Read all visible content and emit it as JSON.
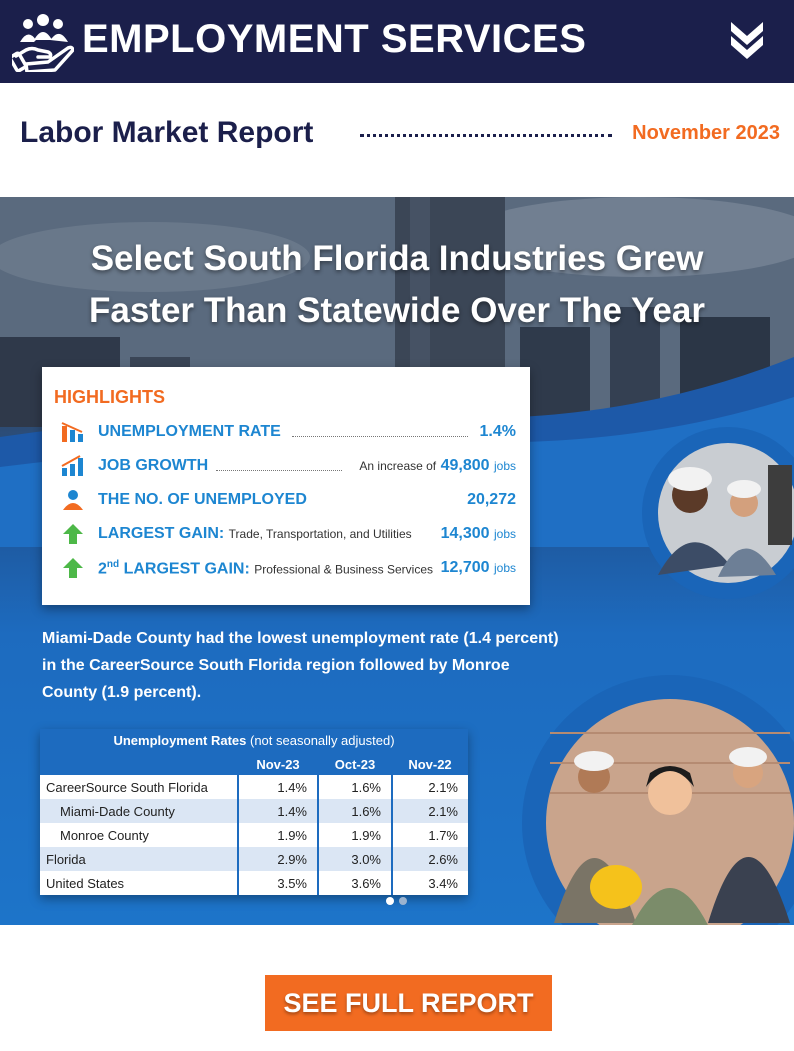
{
  "header": {
    "title": "EMPLOYMENT SERVICES",
    "brand_icon": "people-in-hand-icon",
    "toggle_icon": "double-chevron-down-icon",
    "bg_color": "#1b1f4b"
  },
  "report": {
    "title": "Labor Market Report",
    "date": "November 2023",
    "accent_color": "#f26b21"
  },
  "infographic": {
    "headline_line1": "Select South Florida Industries Grew",
    "headline_line2": "Faster Than Statewide Over The Year",
    "highlights": {
      "heading": "HIGHLIGHTS",
      "items": [
        {
          "icon": "bar-chart-down-icon",
          "label": "UNEMPLOYMENT RATE",
          "detail": "",
          "prefix": "",
          "value": "1.4%",
          "suffix": ""
        },
        {
          "icon": "bar-chart-up-icon",
          "label": "JOB GROWTH",
          "detail": "",
          "prefix": "An increase of",
          "value": "49,800",
          "suffix": "jobs"
        },
        {
          "icon": "person-icon",
          "label": "THE NO. OF UNEMPLOYED",
          "detail": "",
          "prefix": "",
          "value": "20,272",
          "suffix": ""
        },
        {
          "icon": "up-arrow-icon",
          "label": "LARGEST GAIN:",
          "detail": "Trade, Transportation, and Utilities",
          "prefix": "",
          "value": "14,300",
          "suffix": "jobs"
        },
        {
          "icon": "up-arrow-icon",
          "label_sup": "nd",
          "label_pre": "2",
          "label": "LARGEST GAIN:",
          "detail": "Professional & Business Services",
          "prefix": "",
          "value": "12,700",
          "suffix": "jobs"
        }
      ]
    },
    "summary": "Miami-Dade County had the lowest unemployment rate (1.4 percent) in the CareerSource South Florida region followed by Monroe County (1.9 percent).",
    "rates_table": {
      "title_bold": "Unemployment Rates",
      "title_rest": "(not seasonally adjusted)",
      "columns": [
        "",
        "Nov-23",
        "Oct-23",
        "Nov-22"
      ],
      "rows": [
        {
          "name": "CareerSource South Florida",
          "indent": false,
          "shade": false,
          "values": [
            "1.4%",
            "1.6%",
            "2.1%"
          ]
        },
        {
          "name": "Miami-Dade County",
          "indent": true,
          "shade": true,
          "values": [
            "1.4%",
            "1.6%",
            "2.1%"
          ]
        },
        {
          "name": "Monroe County",
          "indent": true,
          "shade": false,
          "values": [
            "1.9%",
            "1.9%",
            "1.7%"
          ]
        },
        {
          "name": "Florida",
          "indent": false,
          "shade": true,
          "values": [
            "2.9%",
            "3.0%",
            "2.6%"
          ]
        },
        {
          "name": "United States",
          "indent": false,
          "shade": false,
          "values": [
            "3.5%",
            "3.6%",
            "3.4%"
          ]
        }
      ]
    },
    "carousel": {
      "active_index": 0,
      "count": 2
    }
  },
  "cta": {
    "label": "SEE FULL REPORT"
  }
}
